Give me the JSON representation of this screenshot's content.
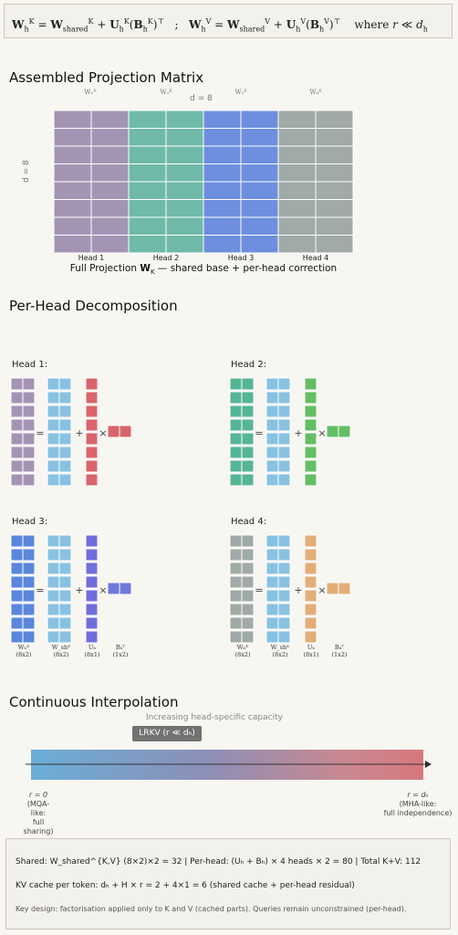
{
  "formula": {
    "text": "W_h^K = W_shared^K + U_h^K (B_h^K)ᵀ ; W_h^V = W_shared^V + U_h^V (B_h^V)ᵀ where r ≪ d_h"
  },
  "assembled": {
    "title": "Assembled Projection Matrix",
    "w_labels": [
      "W₁ᴷ",
      "W₂ᴷ",
      "W₃ᴷ",
      "W₄ᴷ"
    ],
    "dim_top": "d = 8",
    "dim_left": "d = 8",
    "heads": [
      {
        "label": "Head 1",
        "color": "#d9646b",
        "fill": "#a494b4"
      },
      {
        "label": "Head 2",
        "color": "#66b98c",
        "fill": "#6fbaa8"
      },
      {
        "label": "Head 3",
        "color": "#6f78d6",
        "fill": "#6e8fdd"
      },
      {
        "label": "Head 4",
        "color": "#e0a36a",
        "fill": "#a0aaa6"
      }
    ],
    "caption_pre": "Full Projection ",
    "caption_w": "W",
    "caption_sub": "K",
    "caption_post": " — shared base + per-head correction"
  },
  "per_head": {
    "title": "Per-Head Decomposition",
    "shared_color": "#88c2e2",
    "heads": [
      {
        "label": "Head 1:",
        "title_color": "#d9646b",
        "wh_color": "#a494b4",
        "u_color": "#d9646b",
        "b_color": "#d9646b"
      },
      {
        "label": "Head 2:",
        "title_color": "#66b98c",
        "wh_color": "#56b596",
        "u_color": "#63be64",
        "b_color": "#63be64"
      },
      {
        "label": "Head 3:",
        "title_color": "#6f78d6",
        "wh_color": "#5a87dd",
        "u_color": "#6f6fdc",
        "b_color": "#6f78dc"
      },
      {
        "label": "Head 4:",
        "title_color": "#e0a36a",
        "wh_color": "#a0aaa6",
        "u_color": "#e3ad78",
        "b_color": "#e3ad78"
      }
    ],
    "sublabels": [
      {
        "name": "Wₕᴷ",
        "dim": "(8x2)"
      },
      {
        "name": "W_shᴷ",
        "dim": "(8x2)"
      },
      {
        "name": "Uₕ",
        "dim": "(8x1)"
      },
      {
        "name": "Bₕᵀ",
        "dim": "(1x2)"
      }
    ],
    "eq": "=",
    "plus": "+",
    "times": "×"
  },
  "interp": {
    "title": "Continuous Interpolation",
    "capacity_label": "Increasing head-specific capacity",
    "lrkv_label": "LRKV (r ≪ dₕ)",
    "left_r": "r = 0",
    "left_desc1": "(MQA-like:",
    "left_desc2": "full sharing)",
    "right_r": "r = dₕ",
    "right_desc1": "(MHA-like:",
    "right_desc2": "full independence)"
  },
  "info": {
    "line1": "Shared: W_shared^{K,V} (8×2)×2 = 32   |   Per-head: (Uₕ + Bₕ) × 4 heads × 2 = 80   |   Total K+V: 112",
    "line2": "KV cache per token: dₕ + H × r = 2 + 4×1 = 6  (shared cache + per-head residual)",
    "line3": "Key design: factorisation applied only to K and V (cached parts). Queries remain unconstrained (per-head)."
  }
}
